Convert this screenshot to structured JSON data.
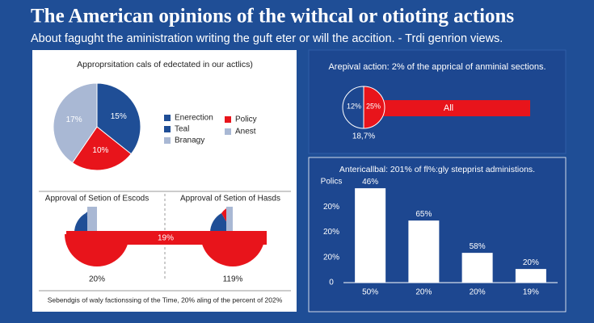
{
  "header": {
    "title": "The American opinions of the withcal or otioting actions",
    "subtitle": "About fagught the aministration writing the guft eter or will the accition. - Trdi genrion views."
  },
  "chart_data": [
    {
      "type": "pie",
      "title": "Approprsitation cals of edectated in our actlics)",
      "values": [
        15,
        10,
        17
      ],
      "value_labels": [
        "15%",
        "10%",
        "17%"
      ],
      "colors": [
        "#1f4e96",
        "#e8141b",
        "#a9b8d4"
      ],
      "legend": [
        {
          "name": "Enerection",
          "color": "#1f4e96"
        },
        {
          "name": "Teal",
          "color": "#1f4e96"
        },
        {
          "name": "Branagy",
          "color": "#a9b8d4"
        },
        {
          "name": "Policy",
          "color": "#e8141b"
        },
        {
          "name": "Anest",
          "color": "#a9b8d4"
        }
      ]
    },
    {
      "type": "bar",
      "title": "Antericallbal: 201% of fl%:gly stepprist administions.",
      "categories": [
        "50%",
        "20%",
        "20%",
        "19%"
      ],
      "values": [
        3.74,
        2.46,
        1.18,
        0.54
      ],
      "annotations": [
        "46%",
        "65%",
        "58%",
        "20%"
      ],
      "color": "#ffffff",
      "ylim": [
        0,
        4
      ],
      "yticks": [
        0,
        {
          "value": 1,
          "label": "20%"
        },
        {
          "value": 2,
          "label": "20%"
        },
        {
          "value": 3,
          "label": "20%"
        },
        {
          "value": 4,
          "label": "Polics"
        }
      ]
    }
  ],
  "halves": {
    "titles": [
      "Approval of Setion of Escods",
      "Approval of Setion of Hasds"
    ],
    "labels": [
      "20%",
      "119%"
    ],
    "banner": "19%",
    "footnote": "Sebendgis of waly factionssing of the Time, 20% aling of the percent of 202%"
  },
  "action": {
    "title": "Arepival action: 2% of the apprical of anminial sections.",
    "bar_label": "All",
    "circle_labels": [
      "12%",
      "25%"
    ],
    "caption": "18,7%"
  }
}
